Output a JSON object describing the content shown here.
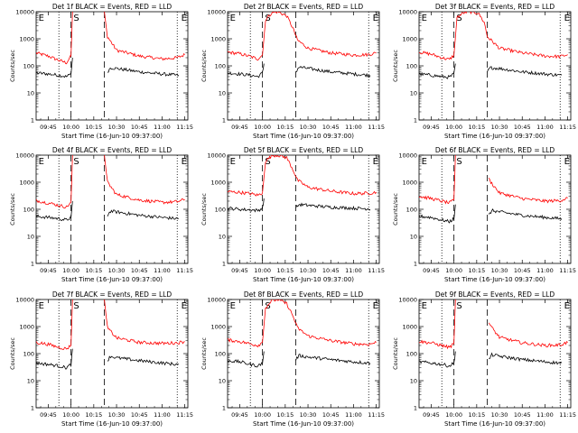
{
  "chart_data": [
    {
      "type": "line",
      "title": "Det 1f BLACK = Events, RED = LLD",
      "xlabel": "Start Time (16-Jun-10 09:37:00)",
      "ylabel": "Counts/sec",
      "ylim": [
        1,
        10000
      ],
      "yscale": "log",
      "xticks": [
        "09:45",
        "10:00",
        "10:15",
        "10:30",
        "10:45",
        "11:00",
        "11:15"
      ],
      "yticks": [
        "1",
        "10",
        "100",
        "1000",
        "10000"
      ],
      "markers": [
        "E",
        "S",
        "E"
      ],
      "series": [
        {
          "color": "#ff0000",
          "x": [
            "09:37",
            "09:45",
            "09:52",
            "09:57",
            "10:00",
            "10:01"
          ],
          "y": [
            300,
            230,
            160,
            130,
            230,
            10000
          ]
        },
        {
          "color": "#000000",
          "x": [
            "09:37",
            "09:45",
            "09:52",
            "09:57",
            "10:00",
            "10:01"
          ],
          "y": [
            55,
            50,
            45,
            40,
            50,
            200
          ]
        },
        {
          "color": "#ff0000",
          "x": [
            "10:22",
            "10:24",
            "10:30",
            "10:45",
            "11:00",
            "11:10",
            "11:15"
          ],
          "y": [
            10000,
            1200,
            380,
            230,
            180,
            200,
            260
          ]
        },
        {
          "color": "#000000",
          "x": [
            "10:24",
            "10:26",
            "10:30",
            "10:45",
            "11:00",
            "11:10",
            "11:11"
          ],
          "y": [
            60,
            85,
            80,
            60,
            50,
            45,
            45
          ]
        }
      ]
    },
    {
      "type": "line",
      "title": "Det 2f BLACK = Events, RED = LLD",
      "xlabel": "Start Time (16-Jun-10 09:37:00)",
      "ylabel": "Counts/sec",
      "ylim": [
        1,
        10000
      ],
      "yscale": "log",
      "xticks": [
        "09:45",
        "10:00",
        "10:15",
        "10:30",
        "10:45",
        "11:00",
        "11:15"
      ],
      "yticks": [
        "1",
        "10",
        "100",
        "1000",
        "10000"
      ],
      "markers": [
        "E",
        "S",
        "E"
      ],
      "series": [
        {
          "color": "#ff0000",
          "x": [
            "09:37",
            "09:45",
            "09:52",
            "09:57",
            "10:00",
            "10:02",
            "10:06",
            "10:10",
            "10:16",
            "10:20",
            "10:23",
            "10:30",
            "10:45",
            "11:00",
            "11:10",
            "11:15"
          ],
          "y": [
            320,
            280,
            220,
            180,
            250,
            5000,
            9000,
            10000,
            7000,
            2500,
            900,
            450,
            300,
            250,
            260,
            300
          ]
        },
        {
          "color": "#000000",
          "x": [
            "09:37",
            "09:45",
            "09:52",
            "09:57",
            "10:00",
            "10:01"
          ],
          "y": [
            55,
            50,
            45,
            40,
            55,
            120
          ]
        },
        {
          "color": "#000000",
          "x": [
            "10:22",
            "10:24",
            "10:30",
            "10:45",
            "11:00",
            "11:10",
            "11:11"
          ],
          "y": [
            60,
            90,
            80,
            60,
            50,
            45,
            45
          ]
        }
      ]
    },
    {
      "type": "line",
      "title": "Det 3f BLACK = Events, RED = LLD",
      "xlabel": "Start Time (16-Jun-10 09:37:00)",
      "ylabel": "Counts/sec",
      "ylim": [
        1,
        10000
      ],
      "yscale": "log",
      "xticks": [
        "09:45",
        "10:00",
        "10:15",
        "10:30",
        "10:45",
        "11:00",
        "11:15"
      ],
      "yticks": [
        "1",
        "10",
        "100",
        "1000",
        "10000"
      ],
      "markers": [
        "E",
        "S",
        "E"
      ],
      "series": [
        {
          "color": "#ff0000",
          "x": [
            "09:37",
            "09:45",
            "09:52",
            "09:57",
            "10:00",
            "10:02",
            "10:06",
            "10:10",
            "10:16",
            "10:20",
            "10:22",
            "10:30",
            "10:45",
            "11:00",
            "11:10",
            "11:15"
          ],
          "y": [
            320,
            270,
            200,
            170,
            250,
            6000,
            9000,
            10000,
            9000,
            4000,
            1200,
            450,
            300,
            230,
            220,
            260
          ]
        },
        {
          "color": "#000000",
          "x": [
            "09:37",
            "09:45",
            "09:52",
            "09:57",
            "10:00",
            "10:01"
          ],
          "y": [
            50,
            45,
            40,
            38,
            50,
            120
          ]
        },
        {
          "color": "#000000",
          "x": [
            "10:22",
            "10:24",
            "10:30",
            "10:45",
            "11:00",
            "11:10",
            "11:11"
          ],
          "y": [
            60,
            85,
            80,
            60,
            50,
            45,
            45
          ]
        }
      ]
    },
    {
      "type": "line",
      "title": "Det 4f BLACK = Events, RED = LLD",
      "xlabel": "Start Time (16-Jun-10 09:37:00)",
      "ylabel": "Counts/sec",
      "ylim": [
        1,
        10000
      ],
      "yscale": "log",
      "xticks": [
        "09:45",
        "10:00",
        "10:15",
        "10:30",
        "10:45",
        "11:00",
        "11:15"
      ],
      "yticks": [
        "1",
        "10",
        "100",
        "1000",
        "10000"
      ],
      "markers": [
        "E",
        "S",
        "E"
      ],
      "series": [
        {
          "color": "#ff0000",
          "x": [
            "09:37",
            "09:45",
            "09:52",
            "09:57",
            "10:00",
            "10:01"
          ],
          "y": [
            210,
            170,
            140,
            120,
            180,
            10000
          ]
        },
        {
          "color": "#000000",
          "x": [
            "09:37",
            "09:45",
            "09:52",
            "09:57",
            "10:00",
            "10:01"
          ],
          "y": [
            55,
            50,
            45,
            40,
            50,
            200
          ]
        },
        {
          "color": "#ff0000",
          "x": [
            "10:22",
            "10:24",
            "10:30",
            "10:45",
            "11:00",
            "11:10",
            "11:15"
          ],
          "y": [
            10000,
            1000,
            350,
            220,
            180,
            190,
            230
          ]
        },
        {
          "color": "#000000",
          "x": [
            "10:24",
            "10:26",
            "10:30",
            "10:45",
            "11:00",
            "11:10",
            "11:11"
          ],
          "y": [
            60,
            85,
            80,
            60,
            50,
            45,
            45
          ]
        }
      ]
    },
    {
      "type": "line",
      "title": "Det 5f BLACK = Events, RED = LLD",
      "xlabel": "Start Time (16-Jun-10 09:37:00)",
      "ylabel": "Counts/sec",
      "ylim": [
        1,
        10000
      ],
      "yscale": "log",
      "xticks": [
        "09:45",
        "10:00",
        "10:15",
        "10:30",
        "10:45",
        "11:00",
        "11:15"
      ],
      "yticks": [
        "1",
        "10",
        "100",
        "1000",
        "10000"
      ],
      "markers": [
        "E",
        "S",
        "E"
      ],
      "series": [
        {
          "color": "#ff0000",
          "x": [
            "09:37",
            "09:45",
            "09:52",
            "09:57",
            "10:00",
            "10:02",
            "10:06",
            "10:10",
            "10:16",
            "10:20",
            "10:23",
            "10:30",
            "10:45",
            "11:00",
            "11:10",
            "11:15"
          ],
          "y": [
            450,
            420,
            380,
            330,
            400,
            6000,
            9500,
            10000,
            8000,
            3000,
            1200,
            650,
            470,
            380,
            390,
            430
          ]
        },
        {
          "color": "#000000",
          "x": [
            "09:37",
            "09:45",
            "09:52",
            "09:57",
            "10:00",
            "10:01"
          ],
          "y": [
            110,
            100,
            95,
            90,
            110,
            250
          ]
        },
        {
          "color": "#000000",
          "x": [
            "10:22",
            "10:24",
            "10:30",
            "10:45",
            "11:00",
            "11:10",
            "11:11"
          ],
          "y": [
            110,
            150,
            140,
            120,
            110,
            105,
            100
          ]
        }
      ]
    },
    {
      "type": "line",
      "title": "Det 6f BLACK = Events, RED = LLD",
      "xlabel": "Start Time (16-Jun-10 09:37:00)",
      "ylabel": "Counts/sec",
      "ylim": [
        1,
        10000
      ],
      "yscale": "log",
      "xticks": [
        "09:45",
        "10:00",
        "10:15",
        "10:30",
        "10:45",
        "11:00",
        "11:15"
      ],
      "yticks": [
        "1",
        "10",
        "100",
        "1000",
        "10000"
      ],
      "markers": [
        "E",
        "S",
        "E"
      ],
      "series": [
        {
          "color": "#ff0000",
          "x": [
            "09:37",
            "09:45",
            "09:52",
            "09:57",
            "10:00",
            "10:01"
          ],
          "y": [
            300,
            250,
            200,
            170,
            220,
            10000
          ]
        },
        {
          "color": "#000000",
          "x": [
            "09:37",
            "09:45",
            "09:52",
            "09:57",
            "10:00",
            "10:01"
          ],
          "y": [
            55,
            50,
            40,
            35,
            45,
            150
          ]
        },
        {
          "color": "#ff0000",
          "x": [
            "10:23",
            "10:25",
            "10:30",
            "10:45",
            "11:00",
            "11:10",
            "11:15"
          ],
          "y": [
            1300,
            900,
            400,
            250,
            200,
            210,
            260
          ]
        },
        {
          "color": "#000000",
          "x": [
            "10:23",
            "10:25",
            "10:30",
            "10:45",
            "11:00",
            "11:10",
            "11:11"
          ],
          "y": [
            60,
            90,
            80,
            60,
            50,
            45,
            45
          ]
        }
      ]
    },
    {
      "type": "line",
      "title": "Det 7f BLACK = Events, RED = LLD",
      "xlabel": "Start Time (16-Jun-10 09:37:00)",
      "ylabel": "Counts/sec",
      "ylim": [
        1,
        10000
      ],
      "yscale": "log",
      "xticks": [
        "09:45",
        "10:00",
        "10:15",
        "10:30",
        "10:45",
        "11:00",
        "11:15"
      ],
      "yticks": [
        "1",
        "10",
        "100",
        "1000",
        "10000"
      ],
      "markers": [
        "E",
        "S",
        "E"
      ],
      "series": [
        {
          "color": "#ff0000",
          "x": [
            "09:37",
            "09:45",
            "09:52",
            "09:57",
            "10:00",
            "10:01"
          ],
          "y": [
            260,
            220,
            170,
            150,
            200,
            10000
          ]
        },
        {
          "color": "#000000",
          "x": [
            "09:37",
            "09:45",
            "09:52",
            "09:57",
            "10:00",
            "10:01"
          ],
          "y": [
            45,
            40,
            35,
            30,
            40,
            150
          ]
        },
        {
          "color": "#ff0000",
          "x": [
            "10:22",
            "10:24",
            "10:30",
            "10:45",
            "11:00",
            "11:10",
            "11:15"
          ],
          "y": [
            10000,
            900,
            380,
            260,
            240,
            250,
            280
          ]
        },
        {
          "color": "#000000",
          "x": [
            "10:24",
            "10:26",
            "10:30",
            "10:45",
            "11:00",
            "11:10",
            "11:11"
          ],
          "y": [
            55,
            80,
            70,
            55,
            45,
            40,
            40
          ]
        }
      ]
    },
    {
      "type": "line",
      "title": "Det 8f BLACK = Events, RED = LLD",
      "xlabel": "Start Time (16-Jun-10 09:37:00)",
      "ylabel": "Counts/sec",
      "ylim": [
        1,
        10000
      ],
      "yscale": "log",
      "xticks": [
        "09:45",
        "10:00",
        "10:15",
        "10:30",
        "10:45",
        "11:00",
        "11:15"
      ],
      "yticks": [
        "1",
        "10",
        "100",
        "1000",
        "10000"
      ],
      "markers": [
        "E",
        "S",
        "E"
      ],
      "series": [
        {
          "color": "#ff0000",
          "x": [
            "09:37",
            "09:45",
            "09:52",
            "09:57",
            "10:00",
            "10:02",
            "10:06",
            "10:10",
            "10:16",
            "10:20",
            "10:23",
            "10:30",
            "10:45",
            "11:00",
            "11:10",
            "11:15"
          ],
          "y": [
            320,
            280,
            230,
            200,
            260,
            5000,
            9000,
            10000,
            7000,
            2500,
            900,
            450,
            300,
            230,
            220,
            260
          ]
        },
        {
          "color": "#000000",
          "x": [
            "09:37",
            "09:45",
            "09:52",
            "09:57",
            "10:00",
            "10:01"
          ],
          "y": [
            55,
            50,
            40,
            35,
            45,
            120
          ]
        },
        {
          "color": "#000000",
          "x": [
            "10:22",
            "10:24",
            "10:30",
            "10:45",
            "11:00",
            "11:10",
            "11:11"
          ],
          "y": [
            60,
            85,
            75,
            60,
            50,
            45,
            45
          ]
        }
      ]
    },
    {
      "type": "line",
      "title": "Det 9f BLACK = Events, RED = LLD",
      "xlabel": "Start Time (16-Jun-10 09:37:00)",
      "ylabel": "Counts/sec",
      "ylim": [
        1,
        10000
      ],
      "yscale": "log",
      "xticks": [
        "09:45",
        "10:00",
        "10:15",
        "10:30",
        "10:45",
        "11:00",
        "11:15"
      ],
      "yticks": [
        "1",
        "10",
        "100",
        "1000",
        "10000"
      ],
      "markers": [
        "E",
        "S",
        "E"
      ],
      "series": [
        {
          "color": "#ff0000",
          "x": [
            "09:37",
            "09:45",
            "09:52",
            "09:57",
            "10:00",
            "10:01"
          ],
          "y": [
            280,
            250,
            200,
            170,
            230,
            10000
          ]
        },
        {
          "color": "#000000",
          "x": [
            "09:37",
            "09:45",
            "09:52",
            "09:57",
            "10:00",
            "10:01"
          ],
          "y": [
            50,
            45,
            40,
            35,
            45,
            120
          ]
        },
        {
          "color": "#ff0000",
          "x": [
            "10:23",
            "10:25",
            "10:30",
            "10:45",
            "11:00",
            "11:10",
            "11:15"
          ],
          "y": [
            1400,
            900,
            400,
            250,
            200,
            210,
            260
          ]
        },
        {
          "color": "#000000",
          "x": [
            "10:23",
            "10:25",
            "10:30",
            "10:45",
            "11:00",
            "11:10",
            "11:11"
          ],
          "y": [
            60,
            90,
            80,
            60,
            50,
            45,
            45
          ]
        }
      ]
    }
  ]
}
